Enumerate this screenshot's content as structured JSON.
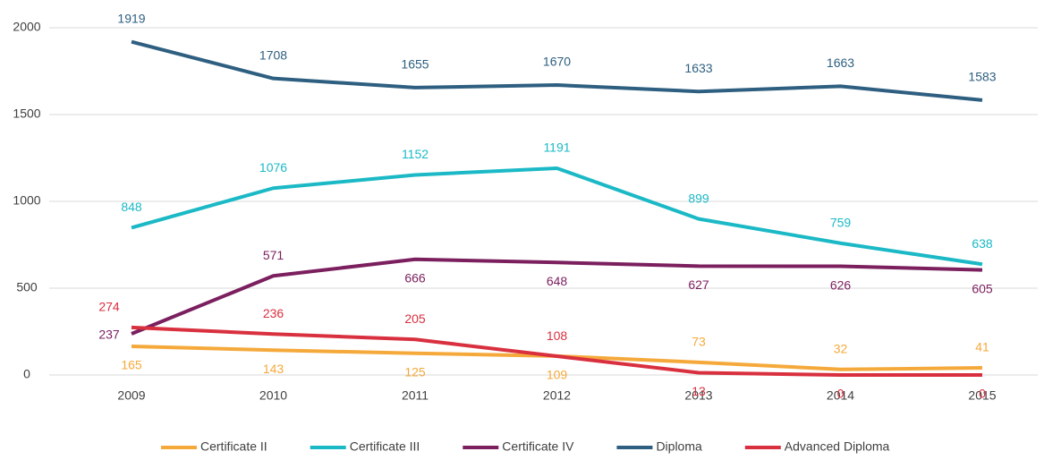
{
  "chart_data": {
    "type": "line",
    "categories": [
      "2009",
      "2010",
      "2011",
      "2012",
      "2013",
      "2014",
      "2015"
    ],
    "series": [
      {
        "name": "Certificate II",
        "color": "#f5a93b",
        "values": [
          165,
          143,
          125,
          109,
          73,
          32,
          41
        ]
      },
      {
        "name": "Certificate III",
        "color": "#1bb9c6",
        "values": [
          848,
          1076,
          1152,
          1191,
          899,
          759,
          638
        ]
      },
      {
        "name": "Certificate IV",
        "color": "#7b1f5e",
        "values": [
          237,
          571,
          666,
          648,
          627,
          626,
          605
        ]
      },
      {
        "name": "Diploma",
        "color": "#2e5f80",
        "values": [
          1919,
          1708,
          1655,
          1670,
          1633,
          1663,
          1583
        ]
      },
      {
        "name": "Advanced Diploma",
        "color": "#d9303f",
        "values": [
          274,
          236,
          205,
          108,
          13,
          0,
          0
        ]
      }
    ],
    "ylim": [
      0,
      2000
    ],
    "yticks": [
      0,
      500,
      1000,
      1500,
      2000
    ],
    "grid": true,
    "legend": "bottom"
  }
}
